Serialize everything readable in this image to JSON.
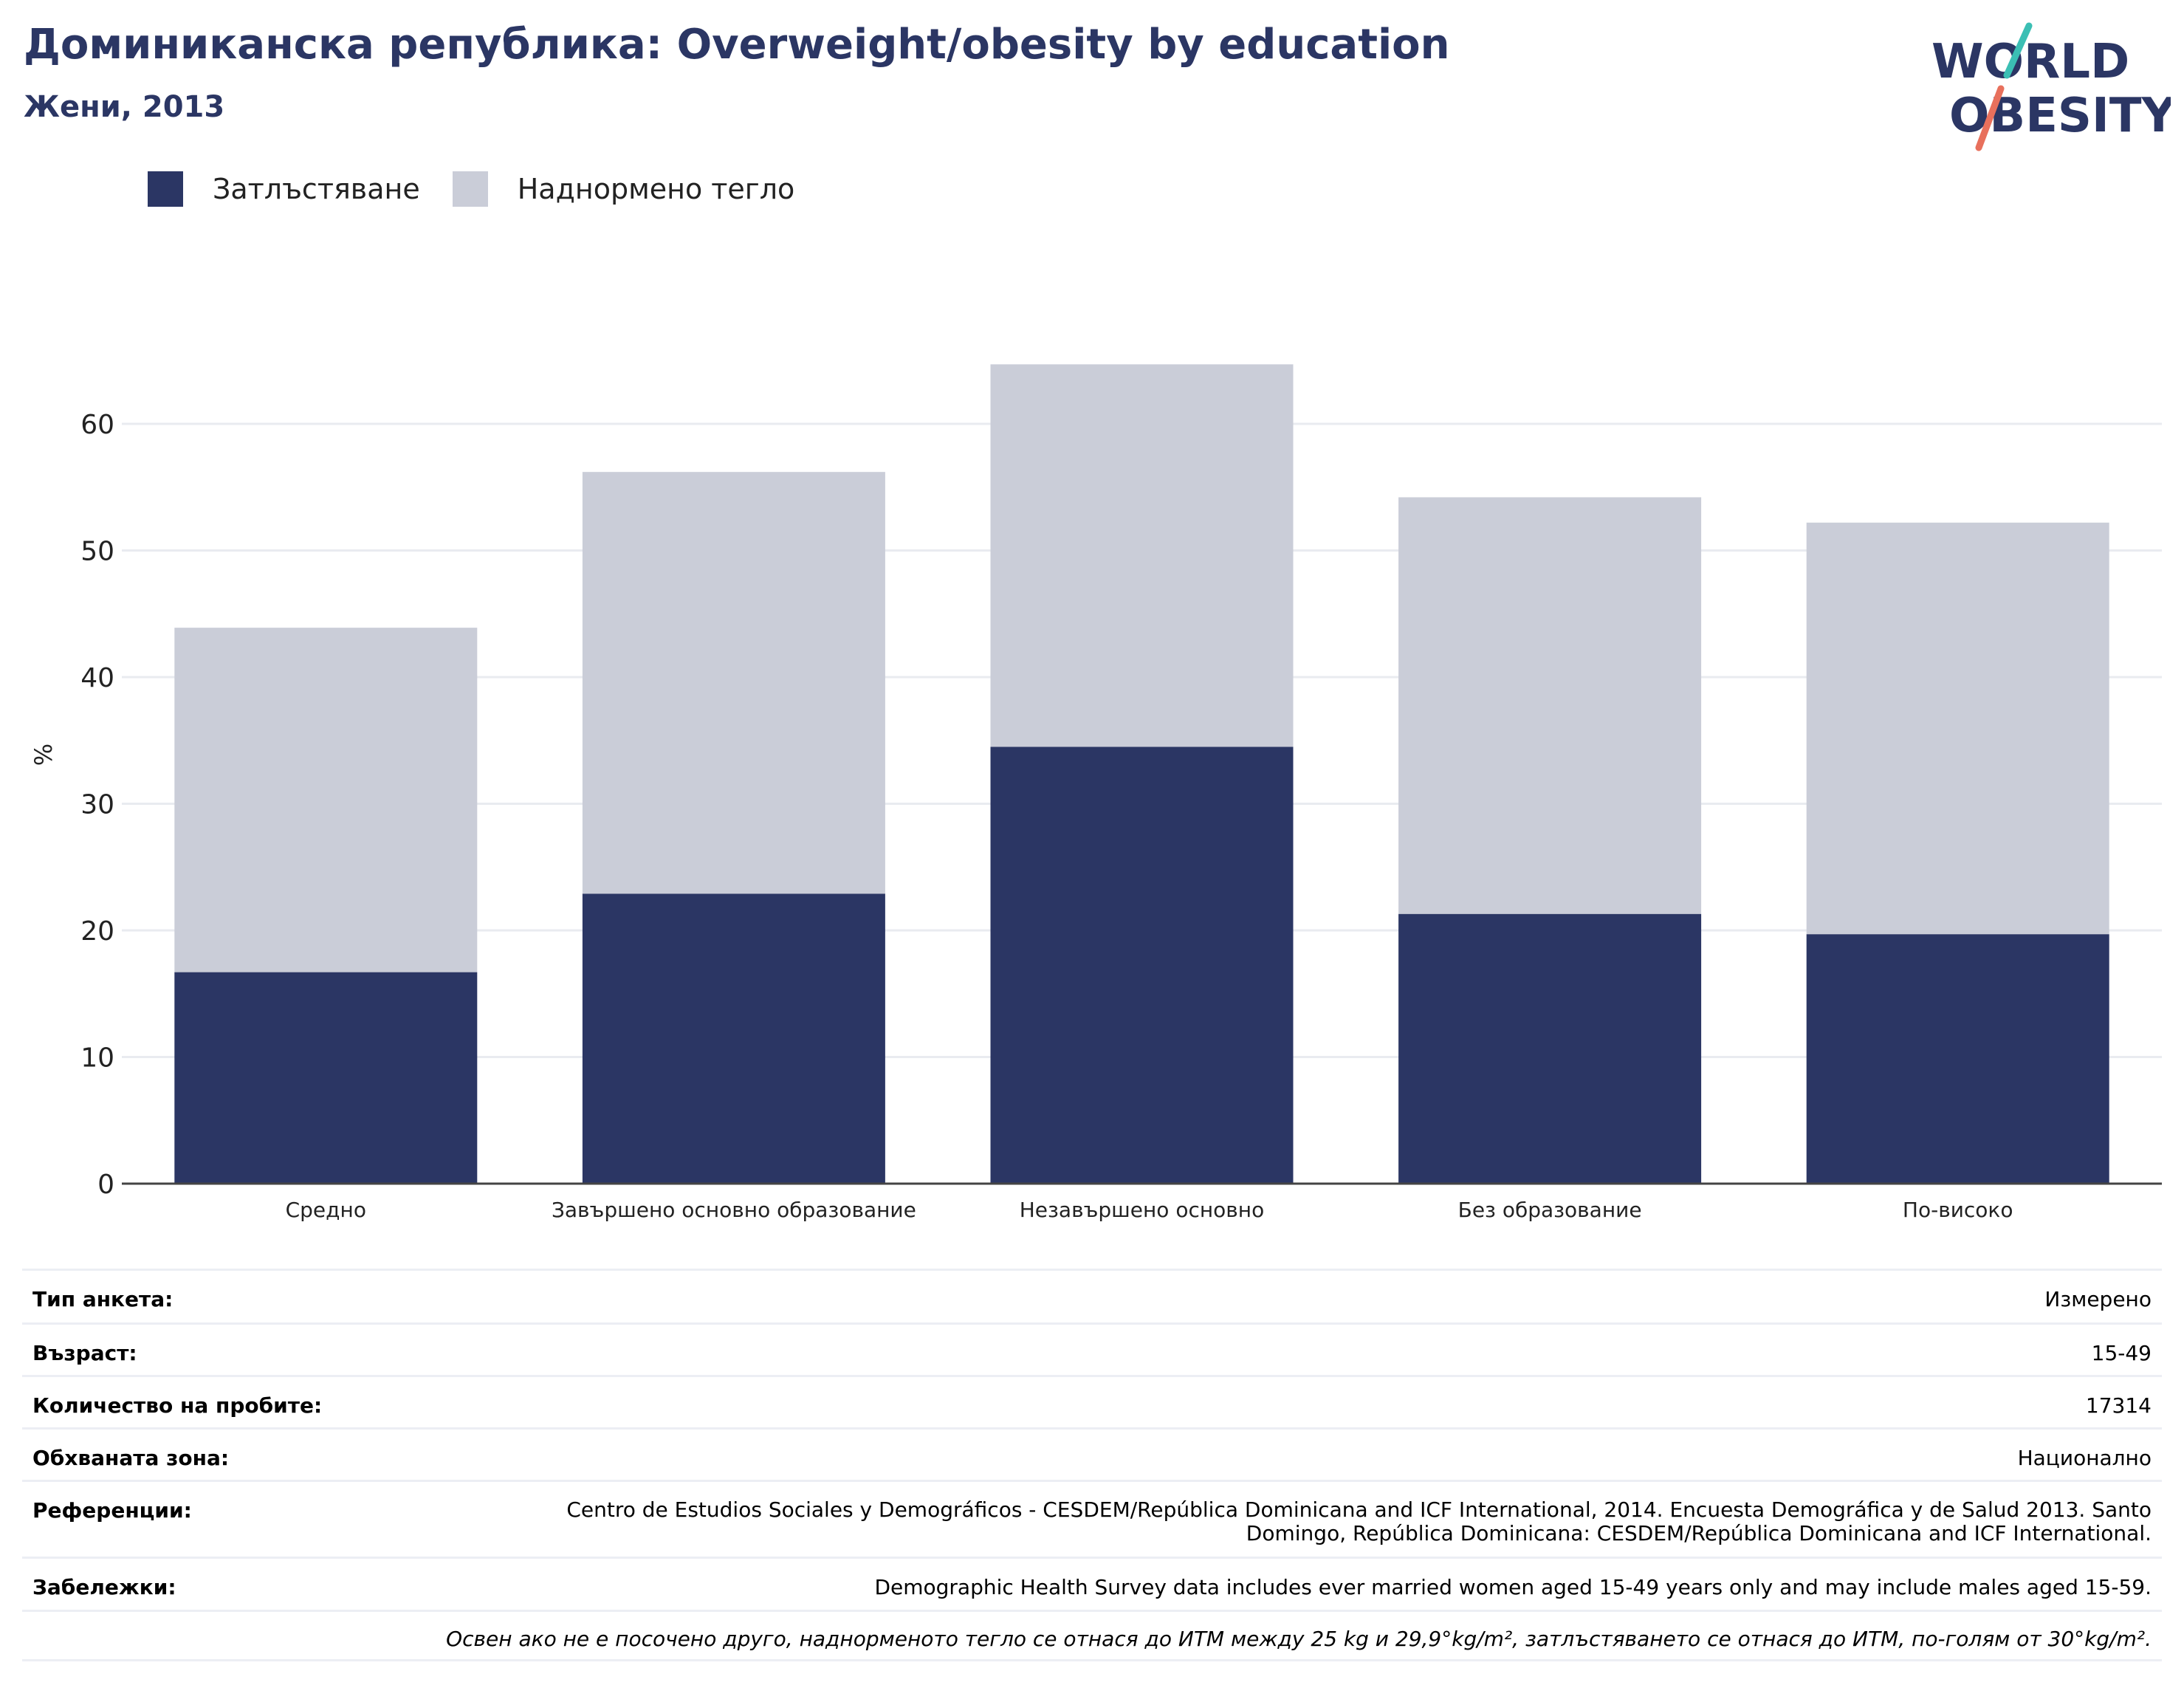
{
  "header": {
    "title": "Доминиканска република: Overweight/obesity by education",
    "subtitle": "Жени, 2013"
  },
  "logo": {
    "line1": "WORLD",
    "line2": "OBESITY"
  },
  "colors": {
    "obesity": "#2b3664",
    "overweight": "#cacdd8",
    "title": "#2b3664",
    "logo_teal": "#3bbfb4",
    "logo_coral": "#e8705c",
    "grid": "#e9ebf0"
  },
  "chart_data": {
    "type": "bar",
    "stacked": true,
    "categories": [
      "Средно",
      "Завършено основно образование",
      "Незавършено основно",
      "Без образование",
      "По-високо"
    ],
    "series": [
      {
        "name": "Затлъстяване",
        "values": [
          16.7,
          22.9,
          34.5,
          21.3,
          19.7
        ]
      },
      {
        "name": "Наднормено тегло",
        "values": [
          27.2,
          33.3,
          30.2,
          32.9,
          32.5
        ]
      }
    ],
    "ylabel": "%",
    "yticks": [
      0,
      10,
      20,
      30,
      40,
      50,
      60
    ],
    "ylim": [
      0,
      70
    ],
    "grid": true,
    "legend_position": "top-left"
  },
  "meta": {
    "rows": [
      {
        "label": "Тип анкета:",
        "value": "Измерено"
      },
      {
        "label": "Възраст:",
        "value": "15-49"
      },
      {
        "label": "Количество на пробите:",
        "value": "17314"
      },
      {
        "label": "Обхваната зона:",
        "value": "Национално"
      },
      {
        "label": "Референции:",
        "value": "Centro de Estudios Sociales y Demográficos - CESDEM/República Dominicana and ICF International, 2014. Encuesta Demográfica y de Salud 2013. Santo Domingo, República Dominicana: CESDEM/República Dominicana and ICF International."
      },
      {
        "label": "Забележки:",
        "value": "Demographic Health Survey data includes ever married women aged 15-49 years only and may include males aged 15-59."
      }
    ],
    "note": "Освен ако не е посочено друго, наднорменото тегло се отнася до ИТМ между 25 kg и 29,9°kg/m², затлъстяването се отнася до ИТМ, по-голям от 30°kg/m²."
  }
}
